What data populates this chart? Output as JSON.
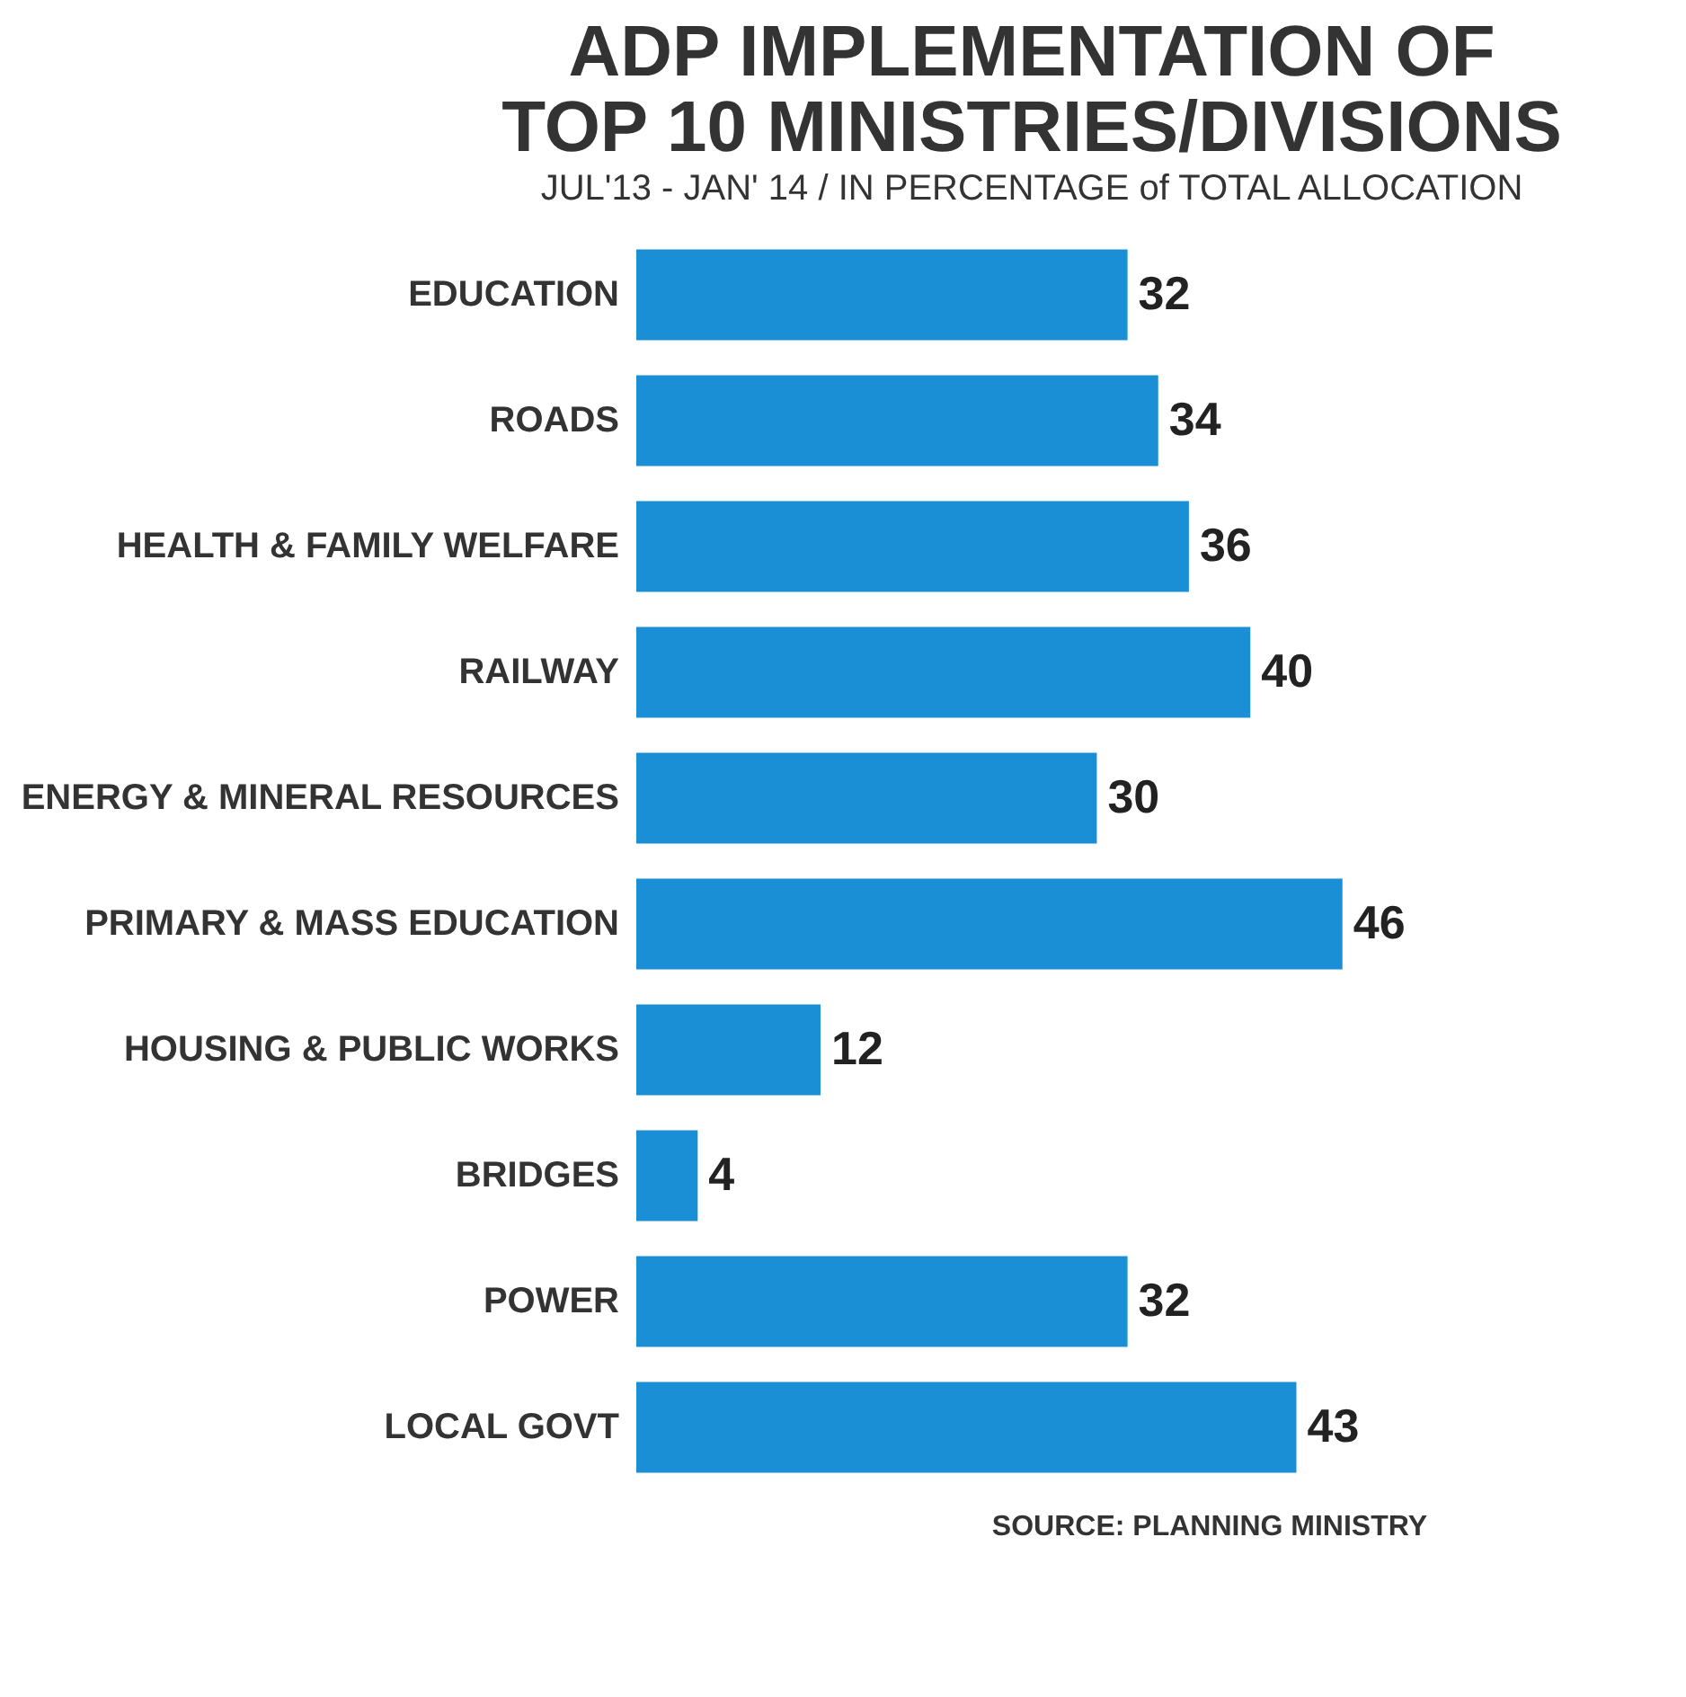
{
  "chart_data": {
    "type": "bar",
    "orientation": "horizontal",
    "title": "ADP IMPLEMENTATION OF\nTOP 10 MINISTRIES/DIVISIONS",
    "subtitle": "JUL'13 - JAN' 14  /  IN PERCENTAGE of TOTAL ALLOCATION",
    "categories": [
      "EDUCATION",
      "ROADS",
      "HEALTH & FAMILY WELFARE",
      "RAILWAY",
      "ENERGY & MINERAL RESOURCES",
      "PRIMARY & MASS EDUCATION",
      "HOUSING & PUBLIC WORKS",
      "BRIDGES",
      "POWER",
      "LOCAL GOVT"
    ],
    "values": [
      32,
      34,
      36,
      40,
      30,
      46,
      12,
      4,
      32,
      43
    ],
    "color": "#1a8fd6",
    "data_labels": true,
    "annotations": [
      "SOURCE: PLANNING MINISTRY"
    ]
  }
}
